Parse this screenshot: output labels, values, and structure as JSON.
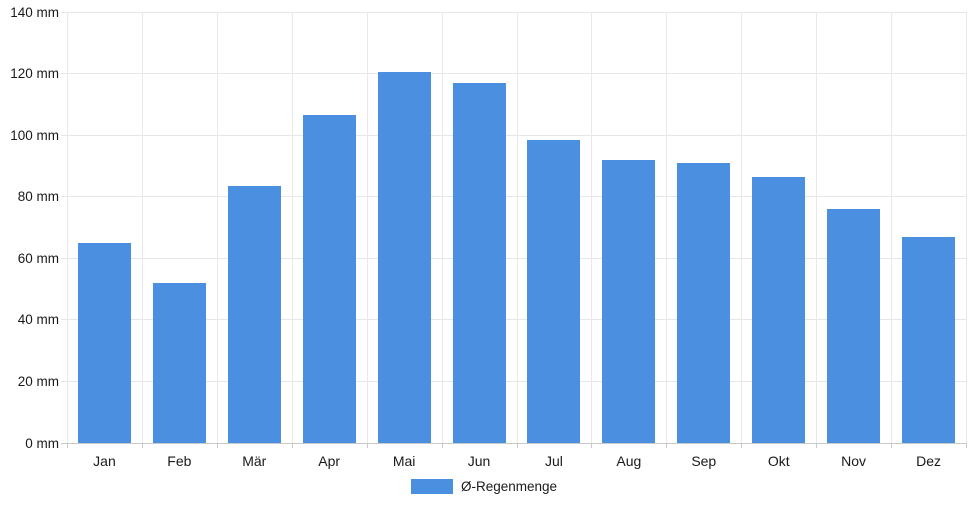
{
  "chart_data": {
    "type": "bar",
    "title": "",
    "xlabel": "",
    "ylabel": "",
    "unit": "mm",
    "categories": [
      "Jan",
      "Feb",
      "Mär",
      "Apr",
      "Mai",
      "Jun",
      "Jul",
      "Aug",
      "Sep",
      "Okt",
      "Nov",
      "Dez"
    ],
    "series": [
      {
        "name": "Ø-Regenmenge",
        "values": [
          65,
          52,
          83.5,
          106.5,
          120.5,
          117,
          98.5,
          92,
          91,
          86.5,
          76,
          67
        ]
      }
    ],
    "ylim": [
      0,
      140
    ],
    "ytick_step": 20,
    "ytick_labels": [
      "0 mm",
      "20 mm",
      "40 mm",
      "60 mm",
      "80 mm",
      "100 mm",
      "120 mm",
      "140 mm"
    ],
    "grid": true,
    "legend_position": "bottom"
  },
  "legend": {
    "label": "Ø-Regenmenge"
  },
  "colors": {
    "bar": "#4a8fe0",
    "grid": "#e6e6e6",
    "axis_line": "#c9c9c9",
    "text": "#1a1a1a"
  }
}
